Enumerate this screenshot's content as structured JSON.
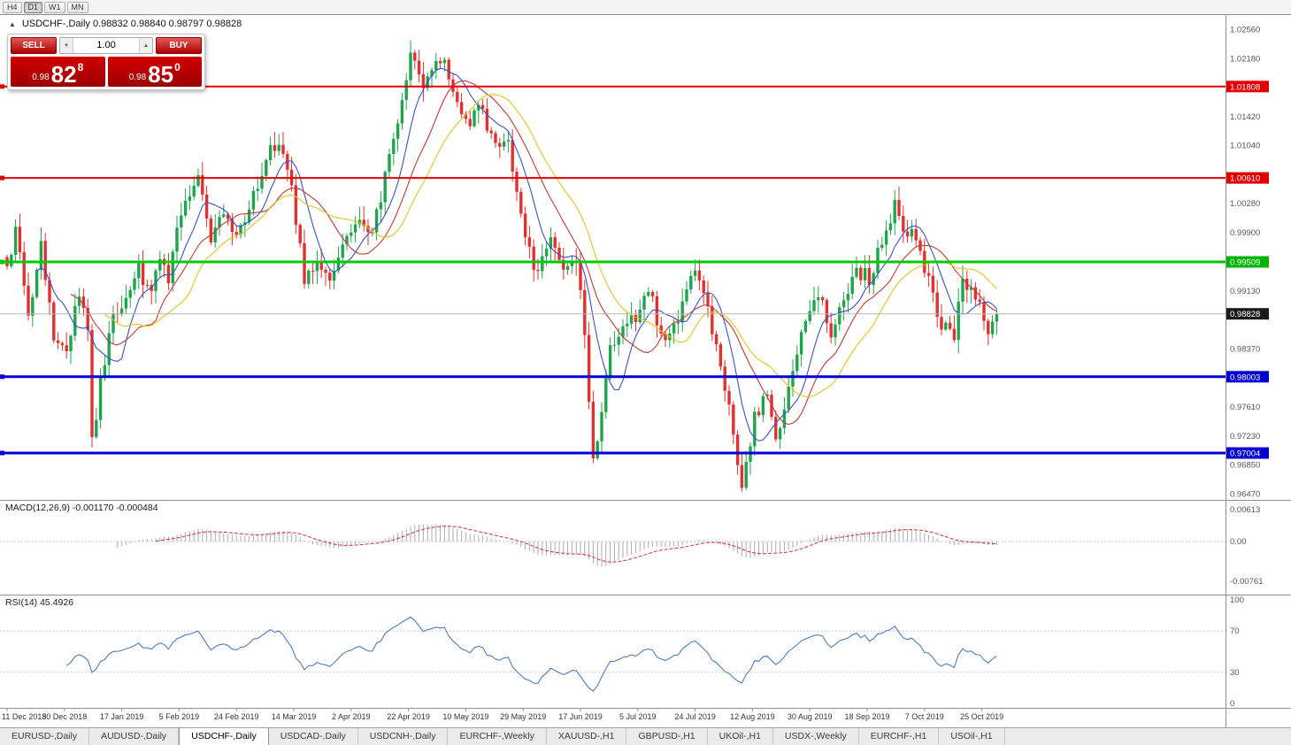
{
  "toolbar": {
    "timeframes": [
      "H4",
      "D1",
      "W1",
      "MN"
    ],
    "active": "D1"
  },
  "icons": {
    "collapse": "▲",
    "volume_down": "▼",
    "volume_up": "▲"
  },
  "chart": {
    "title": "USDCHF-,Daily  0.98832 0.98840 0.98797 0.98828"
  },
  "one_click": {
    "sell_label": "SELL",
    "buy_label": "BUY",
    "volume": "1.00",
    "sell": {
      "prefix": "0.98",
      "big": "82",
      "sup": "8"
    },
    "buy": {
      "prefix": "0.98",
      "big": "85",
      "sup": "0"
    }
  },
  "macd": {
    "header": "MACD(12,26,9) -0.001170 -0.000484",
    "axis": [
      {
        "text": "0.00613",
        "value": 0.00613
      },
      {
        "text": "0.00",
        "value": 0
      },
      {
        "text": "-0.00761",
        "value": -0.00761
      }
    ]
  },
  "rsi": {
    "header": "RSI(14) 45.4926",
    "axis": [
      {
        "text": "100",
        "value": 100
      },
      {
        "text": "70",
        "value": 70
      },
      {
        "text": "30",
        "value": 30
      },
      {
        "text": "0",
        "value": 0
      }
    ],
    "levels": [
      70,
      30
    ]
  },
  "price_axis": {
    "labels": [
      {
        "text": "1.02560",
        "price": 1.0256
      },
      {
        "text": "1.02180",
        "price": 1.0218
      },
      {
        "text": "1.01420",
        "price": 1.0142
      },
      {
        "text": "1.01040",
        "price": 1.0104
      },
      {
        "text": "1.00280",
        "price": 1.0028
      },
      {
        "text": "0.99900",
        "price": 0.999
      },
      {
        "text": "0.99130",
        "price": 0.9913
      },
      {
        "text": "0.98370",
        "price": 0.9837
      },
      {
        "text": "0.97610",
        "price": 0.9761
      },
      {
        "text": "0.97230",
        "price": 0.9723
      },
      {
        "text": "0.96850",
        "price": 0.9685
      },
      {
        "text": "0.96470",
        "price": 0.9647
      }
    ],
    "badges": [
      {
        "text": "1.01808",
        "price": 1.01808,
        "color": "#E00000"
      },
      {
        "text": "1.00610",
        "price": 1.0061,
        "color": "#E00000"
      },
      {
        "text": "0.99509",
        "price": 0.99509,
        "color": "#00B400"
      },
      {
        "text": "0.98828",
        "price": 0.98828,
        "color": "#1A1A1A"
      },
      {
        "text": "0.98003",
        "price": 0.98003,
        "color": "#0000D0"
      },
      {
        "text": "0.97004",
        "price": 0.97004,
        "color": "#0000D0"
      }
    ]
  },
  "levels": [
    {
      "price": 1.01808,
      "color": "#E00000",
      "width": 2
    },
    {
      "price": 1.0061,
      "color": "#E00000",
      "width": 2
    },
    {
      "price": 0.99509,
      "color": "#00C800",
      "width": 3
    },
    {
      "price": 0.98003,
      "color": "#0000D0",
      "width": 3
    },
    {
      "price": 0.97004,
      "color": "#0000D0",
      "width": 3
    }
  ],
  "current_price": {
    "price": 0.98828
  },
  "chart_data": {
    "type": "candlestick",
    "title": "USDCHF-,Daily",
    "y_range": [
      0.9647,
      1.0256
    ],
    "x_labels": [
      "11 Dec 2018",
      "30 Dec 2018",
      "17 Jan 2019",
      "5 Feb 2019",
      "24 Feb 2019",
      "14 Mar 2019",
      "2 Apr 2019",
      "22 Apr 2019",
      "10 May 2019",
      "29 May 2019",
      "17 Jun 2019",
      "5 Jul 2019",
      "24 Jul 2019",
      "12 Aug 2019",
      "30 Aug 2019",
      "18 Sep 2019",
      "7 Oct 2019",
      "25 Oct 2019"
    ],
    "candle_count": 234,
    "price_path_anchors": [
      [
        0,
        0.995
      ],
      [
        2,
        0.999
      ],
      [
        5,
        0.9885
      ],
      [
        8,
        0.997
      ],
      [
        11,
        0.985
      ],
      [
        14,
        0.984
      ],
      [
        17,
        0.9905
      ],
      [
        19,
        0.986
      ],
      [
        20,
        0.9717
      ],
      [
        22,
        0.979
      ],
      [
        25,
        0.988
      ],
      [
        27,
        0.989
      ],
      [
        31,
        0.994
      ],
      [
        34,
        0.9905
      ],
      [
        36,
        0.996
      ],
      [
        38,
        0.992
      ],
      [
        40,
        1.0
      ],
      [
        45,
        1.0068
      ],
      [
        48,
        0.9985
      ],
      [
        51,
        1.001
      ],
      [
        54,
        0.9995
      ],
      [
        57,
        1.002
      ],
      [
        61,
        1.009
      ],
      [
        64,
        1.0105
      ],
      [
        67,
        1.0045
      ],
      [
        70,
        0.993
      ],
      [
        73,
        0.9955
      ],
      [
        76,
        0.993
      ],
      [
        81,
        0.999
      ],
      [
        83,
        1.0
      ],
      [
        86,
        0.999
      ],
      [
        89,
        1.006
      ],
      [
        92,
        1.013
      ],
      [
        95,
        1.0225
      ],
      [
        98,
        1.018
      ],
      [
        101,
        1.0215
      ],
      [
        103,
        1.022
      ],
      [
        107,
        1.014
      ],
      [
        109,
        1.012
      ],
      [
        111,
        1.016
      ],
      [
        115,
        1.01
      ],
      [
        118,
        1.011
      ],
      [
        121,
        1.0005
      ],
      [
        125,
        0.993
      ],
      [
        128,
        0.999
      ],
      [
        131,
        0.995
      ],
      [
        134,
        0.996
      ],
      [
        136,
        0.985
      ],
      [
        138,
        0.9695
      ],
      [
        140,
        0.975
      ],
      [
        142,
        0.984
      ],
      [
        145,
        0.987
      ],
      [
        148,
        0.988
      ],
      [
        151,
        0.992
      ],
      [
        154,
        0.985
      ],
      [
        158,
        0.988
      ],
      [
        162,
        0.9945
      ],
      [
        165,
        0.989
      ],
      [
        167,
        0.984
      ],
      [
        169,
        0.979
      ],
      [
        171,
        0.972
      ],
      [
        173,
        0.966
      ],
      [
        176,
        0.9745
      ],
      [
        179,
        0.9775
      ],
      [
        181,
        0.9715
      ],
      [
        184,
        0.979
      ],
      [
        188,
        0.988
      ],
      [
        191,
        0.991
      ],
      [
        194,
        0.986
      ],
      [
        197,
        0.9905
      ],
      [
        200,
        0.994
      ],
      [
        203,
        0.993
      ],
      [
        206,
        0.9975
      ],
      [
        209,
        1.0025
      ],
      [
        211,
        0.9985
      ],
      [
        213,
        1.0
      ],
      [
        216,
        0.9945
      ],
      [
        218,
        0.9905
      ],
      [
        220,
        0.9865
      ],
      [
        223,
        0.9855
      ],
      [
        225,
        0.993
      ],
      [
        228,
        0.991
      ],
      [
        231,
        0.986
      ],
      [
        233,
        0.98828
      ]
    ],
    "moving_averages": [
      {
        "period": 8,
        "color": "#3A52C4"
      },
      {
        "period": 16,
        "color": "#C03838"
      },
      {
        "period": 24,
        "color": "#E2C222"
      }
    ],
    "macd_params": [
      12,
      26,
      9
    ],
    "rsi_params": [
      14
    ],
    "colors": {
      "up": "#1FA34D",
      "down": "#E03030",
      "macd_hist": "#ABABAB",
      "macd_signal": "#D03030",
      "rsi": "#3E6FB5"
    }
  },
  "tabs": [
    {
      "label": "EURUSD-,Daily",
      "active": false
    },
    {
      "label": "AUDUSD-,Daily",
      "active": false
    },
    {
      "label": "USDCHF-,Daily",
      "active": true
    },
    {
      "label": "USDCAD-,Daily",
      "active": false
    },
    {
      "label": "USDCNH-,Daily",
      "active": false
    },
    {
      "label": "EURCHF-,Weekly",
      "active": false
    },
    {
      "label": "XAUUSD-,H1",
      "active": false
    },
    {
      "label": "GBPUSD-,H1",
      "active": false
    },
    {
      "label": "UKOil-,H1",
      "active": false
    },
    {
      "label": "USDX-,Weekly",
      "active": false
    },
    {
      "label": "EURCHF-,H1",
      "active": false
    },
    {
      "label": "USOil-,H1",
      "active": false
    }
  ]
}
